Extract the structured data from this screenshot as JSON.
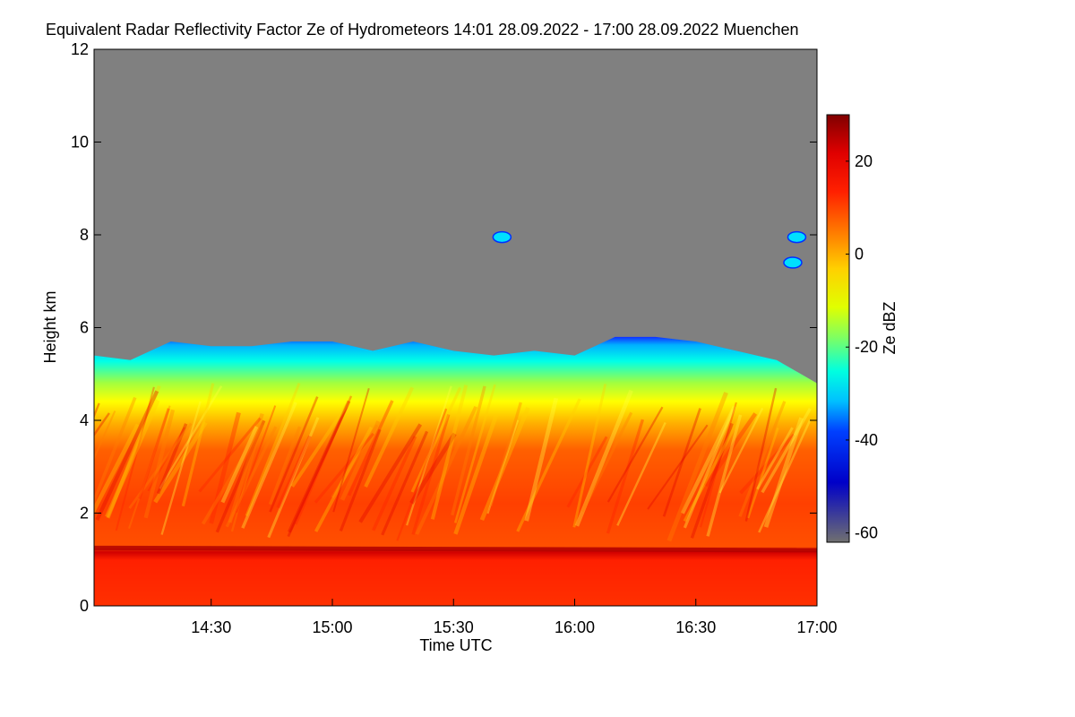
{
  "chart_data": {
    "type": "heatmap",
    "title": "Equivalent Radar Reflectivity Factor Ze of Hydrometeors",
    "time_range": "14:01 28.09.2022 - 17:00 28.09.2022",
    "location": "Muenchen",
    "xlabel": "Time UTC",
    "ylabel": "Height km",
    "xlim": [
      "14:01",
      "17:00"
    ],
    "ylim": [
      0,
      12
    ],
    "x_ticks": [
      "14:30",
      "15:00",
      "15:30",
      "16:00",
      "16:30",
      "17:00"
    ],
    "y_ticks": [
      0,
      2,
      4,
      6,
      8,
      10,
      12
    ],
    "colorbar": {
      "label": "Ze dBZ",
      "range": [
        -62,
        30
      ],
      "ticks": [
        20,
        0,
        -20,
        -40,
        -60
      ]
    },
    "cloud_top_km": [
      [
        "14:01",
        5.4
      ],
      [
        "14:10",
        5.3
      ],
      [
        "14:20",
        5.7
      ],
      [
        "14:30",
        5.6
      ],
      [
        "14:40",
        5.6
      ],
      [
        "14:50",
        5.7
      ],
      [
        "15:00",
        5.7
      ],
      [
        "15:10",
        5.5
      ],
      [
        "15:20",
        5.7
      ],
      [
        "15:30",
        5.5
      ],
      [
        "15:40",
        5.4
      ],
      [
        "15:50",
        5.5
      ],
      [
        "16:00",
        5.4
      ],
      [
        "16:10",
        5.8
      ],
      [
        "16:20",
        5.8
      ],
      [
        "16:30",
        5.7
      ],
      [
        "16:40",
        5.5
      ],
      [
        "16:50",
        5.3
      ],
      [
        "17:00",
        4.8
      ]
    ],
    "melting_layer_km": 1.25,
    "isolated_echoes": [
      {
        "time": "16:55",
        "height_km": 7.95
      },
      {
        "time": "16:54",
        "height_km": 7.4
      },
      {
        "time": "15:42",
        "height_km": 7.95
      }
    ],
    "grid": false,
    "legend": "colorbar-right",
    "colors": {
      "no_signal": "#808080",
      "colormap": [
        "#4d4d4d",
        "#0000ff",
        "#00a0ff",
        "#00ffff",
        "#80ff80",
        "#ffff00",
        "#ffa000",
        "#ff4000",
        "#ff0000",
        "#c00000",
        "#700000"
      ]
    }
  }
}
